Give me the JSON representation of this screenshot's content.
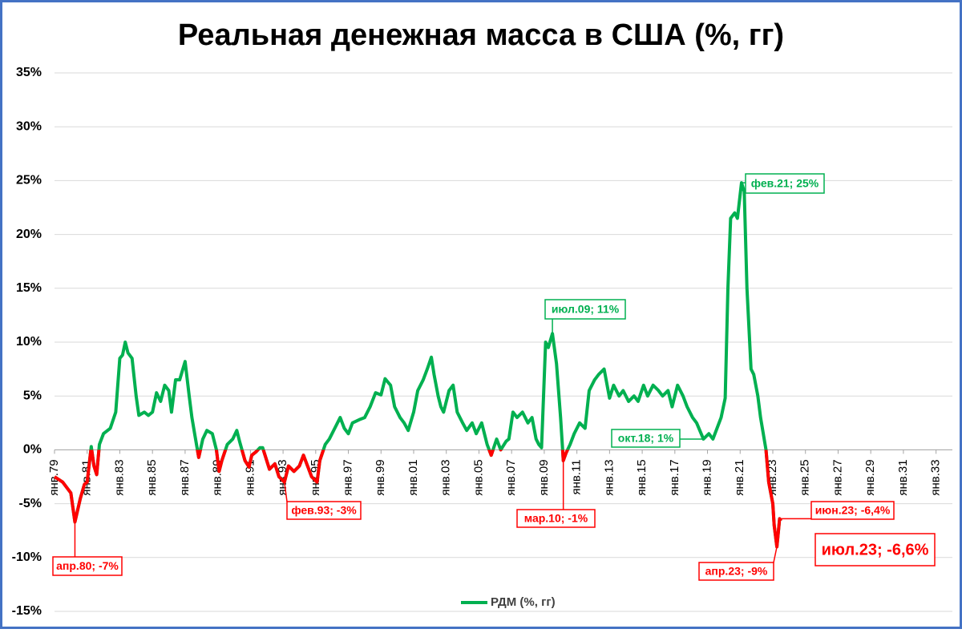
{
  "chart_data": {
    "type": "line",
    "title": "Реальная денежная масса в США (%, гг)",
    "xlim": [
      "1979-01",
      "2034-01"
    ],
    "xticks": [
      {
        "value": "1979-01",
        "label": "янв.79"
      },
      {
        "value": "1981-01",
        "label": "янв.81"
      },
      {
        "value": "1983-01",
        "label": "янв.83"
      },
      {
        "value": "1985-01",
        "label": "янв.85"
      },
      {
        "value": "1987-01",
        "label": "янв.87"
      },
      {
        "value": "1989-01",
        "label": "янв.89"
      },
      {
        "value": "1991-01",
        "label": "янв.91"
      },
      {
        "value": "1993-01",
        "label": "янв.93"
      },
      {
        "value": "1995-01",
        "label": "янв.95"
      },
      {
        "value": "1997-01",
        "label": "янв.97"
      },
      {
        "value": "1999-01",
        "label": "янв.99"
      },
      {
        "value": "2001-01",
        "label": "янв.01"
      },
      {
        "value": "2003-01",
        "label": "янв.03"
      },
      {
        "value": "2005-01",
        "label": "янв.05"
      },
      {
        "value": "2007-01",
        "label": "янв.07"
      },
      {
        "value": "2009-01",
        "label": "янв.09"
      },
      {
        "value": "2011-01",
        "label": "янв.11"
      },
      {
        "value": "2013-01",
        "label": "янв.13"
      },
      {
        "value": "2015-01",
        "label": "янв.15"
      },
      {
        "value": "2017-01",
        "label": "янв.17"
      },
      {
        "value": "2019-01",
        "label": "янв.19"
      },
      {
        "value": "2021-01",
        "label": "янв.21"
      },
      {
        "value": "2023-01",
        "label": "янв.23"
      },
      {
        "value": "2025-01",
        "label": "янв.25"
      },
      {
        "value": "2027-01",
        "label": "янв.27"
      },
      {
        "value": "2029-01",
        "label": "янв.29"
      },
      {
        "value": "2031-01",
        "label": "янв.31"
      },
      {
        "value": "2033-01",
        "label": "янв.33"
      }
    ],
    "ylim": [
      -15,
      35
    ],
    "yticks": [
      {
        "value": -15,
        "label": "-15%"
      },
      {
        "value": -10,
        "label": "-10%"
      },
      {
        "value": -5,
        "label": "-5%"
      },
      {
        "value": 0,
        "label": "0%"
      },
      {
        "value": 5,
        "label": "5%"
      },
      {
        "value": 10,
        "label": "10%"
      },
      {
        "value": 15,
        "label": "15%"
      },
      {
        "value": 20,
        "label": "20%"
      },
      {
        "value": 25,
        "label": "25%"
      },
      {
        "value": 30,
        "label": "30%"
      },
      {
        "value": 35,
        "label": "35%"
      }
    ],
    "grid": true,
    "legend": "bottom",
    "x": [
      "1979-01",
      "1979-07",
      "1980-01",
      "1980-04",
      "1980-08",
      "1980-11",
      "1981-01",
      "1981-04",
      "1981-06",
      "1981-08",
      "1981-10",
      "1982-01",
      "1982-06",
      "1982-10",
      "1983-01",
      "1983-03",
      "1983-05",
      "1983-07",
      "1983-10",
      "1984-01",
      "1984-03",
      "1984-07",
      "1984-10",
      "1985-01",
      "1985-04",
      "1985-07",
      "1985-10",
      "1986-01",
      "1986-03",
      "1986-06",
      "1986-09",
      "1987-01",
      "1987-04",
      "1987-06",
      "1987-08",
      "1987-11",
      "1988-02",
      "1988-05",
      "1988-09",
      "1988-12",
      "1989-02",
      "1989-04",
      "1989-08",
      "1989-12",
      "1990-03",
      "1990-05",
      "1990-09",
      "1990-12",
      "1991-02",
      "1991-05",
      "1991-08",
      "1991-10",
      "1992-01",
      "1992-03",
      "1992-07",
      "1992-10",
      "1993-02",
      "1993-05",
      "1993-09",
      "1994-01",
      "1994-04",
      "1994-07",
      "1994-10",
      "1995-02",
      "1995-04",
      "1995-08",
      "1995-11",
      "1996-03",
      "1996-07",
      "1996-10",
      "1997-01",
      "1997-04",
      "1997-09",
      "1998-01",
      "1998-05",
      "1998-09",
      "1999-01",
      "1999-04",
      "1999-08",
      "1999-11",
      "2000-03",
      "2000-06",
      "2000-09",
      "2001-01",
      "2001-04",
      "2001-08",
      "2001-11",
      "2002-02",
      "2002-04",
      "2002-07",
      "2002-09",
      "2002-11",
      "2003-03",
      "2003-06",
      "2003-09",
      "2004-01",
      "2004-04",
      "2004-08",
      "2004-11",
      "2005-03",
      "2005-07",
      "2005-10",
      "2006-02",
      "2006-05",
      "2006-09",
      "2006-11",
      "2007-02",
      "2007-05",
      "2007-09",
      "2008-01",
      "2008-04",
      "2008-07",
      "2008-09",
      "2008-11",
      "2009-02",
      "2009-04",
      "2009-07",
      "2009-10",
      "2010-01",
      "2010-03",
      "2010-05",
      "2010-08",
      "2010-11",
      "2011-03",
      "2011-07",
      "2011-10",
      "2012-02",
      "2012-05",
      "2012-09",
      "2013-01",
      "2013-04",
      "2013-08",
      "2013-11",
      "2014-03",
      "2014-07",
      "2014-10",
      "2015-02",
      "2015-05",
      "2015-09",
      "2016-01",
      "2016-04",
      "2016-08",
      "2016-11",
      "2017-03",
      "2017-07",
      "2017-10",
      "2018-02",
      "2018-05",
      "2018-10",
      "2019-02",
      "2019-05",
      "2019-08",
      "2019-11",
      "2020-02",
      "2020-04",
      "2020-06",
      "2020-09",
      "2020-11",
      "2021-02",
      "2021-04",
      "2021-06",
      "2021-09",
      "2021-11",
      "2022-02",
      "2022-04",
      "2022-08",
      "2022-10",
      "2023-01",
      "2023-02",
      "2023-04",
      "2023-06",
      "2023-07"
    ],
    "series": [
      {
        "name": "РДМ (%, гг)",
        "color": "#00b050",
        "negative_color": "#ff0000",
        "values": [
          -2.5,
          -3,
          -4,
          -6.7,
          -4.5,
          -3.2,
          -3,
          0.3,
          -1.5,
          -2.3,
          0.5,
          1.5,
          2,
          3.5,
          8.5,
          8.8,
          10,
          9,
          8.5,
          5,
          3.2,
          3.5,
          3.2,
          3.5,
          5.3,
          4.5,
          6,
          5.5,
          3.5,
          6.5,
          6.5,
          8.2,
          5,
          3,
          1.5,
          -0.7,
          1,
          1.8,
          1.5,
          0,
          -2,
          -1,
          0.5,
          1,
          1.8,
          0.8,
          -1,
          -1.6,
          -0.5,
          -0.2,
          0.2,
          0.2,
          -1,
          -1.8,
          -1.3,
          -2.5,
          -3,
          -1.5,
          -2,
          -1.5,
          -0.5,
          -1.5,
          -2.5,
          -3,
          -1,
          0.5,
          1,
          2,
          3,
          2,
          1.5,
          2.5,
          2.8,
          3,
          4,
          5.3,
          5.1,
          6.6,
          6,
          4,
          3,
          2.5,
          1.8,
          3.5,
          5.5,
          6.5,
          7.5,
          8.6,
          7,
          5,
          4,
          3.5,
          5.5,
          6,
          3.5,
          2.5,
          1.8,
          2.5,
          1.5,
          2.5,
          0.5,
          -0.5,
          1,
          0,
          0.8,
          1,
          3.5,
          3,
          3.5,
          2.5,
          3,
          1,
          0.5,
          0.2,
          10,
          9.5,
          10.8,
          8,
          3,
          -1,
          -0.3,
          0.5,
          1.5,
          2.5,
          2,
          5.5,
          6.5,
          7,
          7.5,
          4.8,
          6,
          5,
          5.5,
          4.5,
          5,
          4.5,
          6,
          5,
          6,
          5.5,
          5,
          5.5,
          4,
          6,
          5,
          4,
          3,
          2.5,
          1,
          1.5,
          1,
          2,
          3,
          4.8,
          15,
          21.5,
          22,
          21.5,
          24.8,
          24,
          15,
          7.5,
          7,
          5,
          3,
          0,
          -3,
          -5,
          -7,
          -9,
          -6.4,
          -6.6
        ]
      }
    ],
    "annotations": [
      {
        "text": "апр.80; -7%",
        "x": "1980-04"
      },
      {
        "text": "фев.93; -3%",
        "x": "1993-02"
      },
      {
        "text": "июл.09; 11%",
        "x": "2009-07"
      },
      {
        "text": "мар.10; -1%",
        "x": "2010-03"
      },
      {
        "text": "окт.18; 1%",
        "x": "2018-10"
      },
      {
        "text": "фев.21; 25%",
        "x": "2021-02"
      },
      {
        "text": "апр.23; -9%",
        "x": "2023-04"
      },
      {
        "text": "июн.23; -6,4%",
        "x": "2023-06"
      },
      {
        "text": "июл.23; -6,6%",
        "x": "2023-07"
      }
    ]
  }
}
